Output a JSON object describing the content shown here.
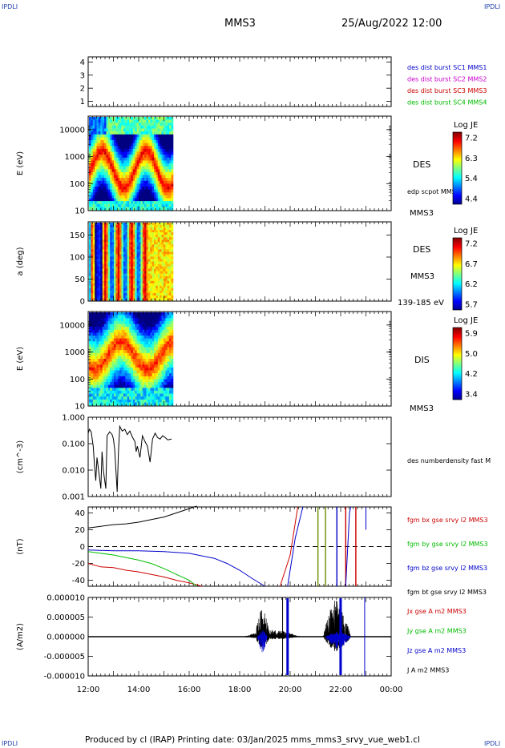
{
  "header": {
    "corner_label": "IPDLI",
    "spacecraft": "MMS3",
    "datetime": "25/Aug/2022 12:00"
  },
  "footer": {
    "text": "Produced by cl (IRAP)   Printing date: 03/Jan/2025   mms_mms3_srvy_vue_web1.cl"
  },
  "colors": {
    "mms1": "#0000cc",
    "mms2": "#cc00cc",
    "mms3": "#cc0000",
    "mms4": "#00bb00",
    "bx": "#cc0000",
    "by": "#00bb00",
    "bz": "#0000cc",
    "bt": "#000000"
  },
  "chart_data": [
    {
      "id": "panel-availability",
      "type": "line",
      "yticks": [
        "1",
        "2",
        "3",
        "4"
      ],
      "ylim": [
        0.6,
        4.4
      ],
      "legend": [
        {
          "label": "des dist burst SC1 MMS1",
          "color": "#0000cc"
        },
        {
          "label": "des dist burst SC2 MMS2",
          "color": "#cc00cc"
        },
        {
          "label": "des dist burst SC3 MMS3",
          "color": "#cc0000"
        },
        {
          "label": "des dist burst SC4 MMS4",
          "color": "#00bb00"
        }
      ]
    },
    {
      "id": "panel-des-energy",
      "type": "heatmap",
      "ylabel": "E (eV)",
      "yscale": "log",
      "yticks": [
        "10",
        "100",
        "1000",
        "10000"
      ],
      "data_end": "15:20",
      "right_labels": [
        "DES",
        "edp scpot MMS3",
        "MMS3"
      ],
      "colorbar": {
        "title": "Log JE",
        "ticks": [
          "7.2",
          "6.3",
          "5.4",
          "4.4"
        ]
      }
    },
    {
      "id": "panel-des-pitch",
      "type": "heatmap",
      "ylabel": "a (deg)",
      "yticks": [
        "0",
        "50",
        "100",
        "150"
      ],
      "ylim": [
        0,
        180
      ],
      "data_end": "15:20",
      "right_labels": [
        "DES",
        "MMS3",
        "139-185 eV"
      ],
      "colorbar": {
        "title": "Log JE",
        "ticks": [
          "7.2",
          "6.7",
          "6.2",
          "5.7"
        ]
      }
    },
    {
      "id": "panel-dis-energy",
      "type": "heatmap",
      "ylabel": "E (eV)",
      "yscale": "log",
      "yticks": [
        "10",
        "100",
        "1000",
        "10000"
      ],
      "data_end": "15:20",
      "right_labels": [
        "DIS",
        "MMS3"
      ],
      "colorbar": {
        "title": "Log JE",
        "ticks": [
          "5.9",
          "5.0",
          "4.2",
          "3.4"
        ]
      }
    },
    {
      "id": "panel-density",
      "type": "line",
      "ylabel": "(cm^-3)",
      "yscale": "log",
      "yticks": [
        "0.001",
        "0.010",
        "0.100",
        "1.000"
      ],
      "series_label": "des numberdensity fast M"
    },
    {
      "id": "panel-fgm",
      "type": "line",
      "ylabel": "(nT)",
      "yticks": [
        "-40",
        "-20",
        "0",
        "20",
        "40"
      ],
      "ylim": [
        -47,
        47
      ],
      "series": [
        {
          "name": "fgm bx gse srvy l2 MMS3",
          "color": "#cc0000"
        },
        {
          "name": "fgm by gse srvy l2 MMS3",
          "color": "#00bb00"
        },
        {
          "name": "fgm bz gse srvy l2 MMS3",
          "color": "#0000cc"
        },
        {
          "name": "fgm bt gse srvy l2 MMS3",
          "color": "#000000"
        }
      ]
    },
    {
      "id": "panel-current",
      "type": "line",
      "ylabel": "(A/m2)",
      "yticks": [
        "-0.000010",
        "-0.000005",
        "0.000000",
        "0.000005",
        "0.000010"
      ],
      "ylim": [
        -1e-05,
        1e-05
      ],
      "series": [
        {
          "name": "Jx gse A m2 MMS3",
          "color": "#cc0000"
        },
        {
          "name": "Jy gse A m2 MMS3",
          "color": "#00bb00"
        },
        {
          "name": "Jz gse A m2 MMS3",
          "color": "#0000cc"
        },
        {
          "name": "J A m2 MMS3",
          "color": "#000000"
        }
      ]
    }
  ],
  "xaxis": {
    "ticks": [
      "12:00",
      "14:00",
      "16:00",
      "18:00",
      "20:00",
      "22:00",
      "00:00"
    ]
  }
}
